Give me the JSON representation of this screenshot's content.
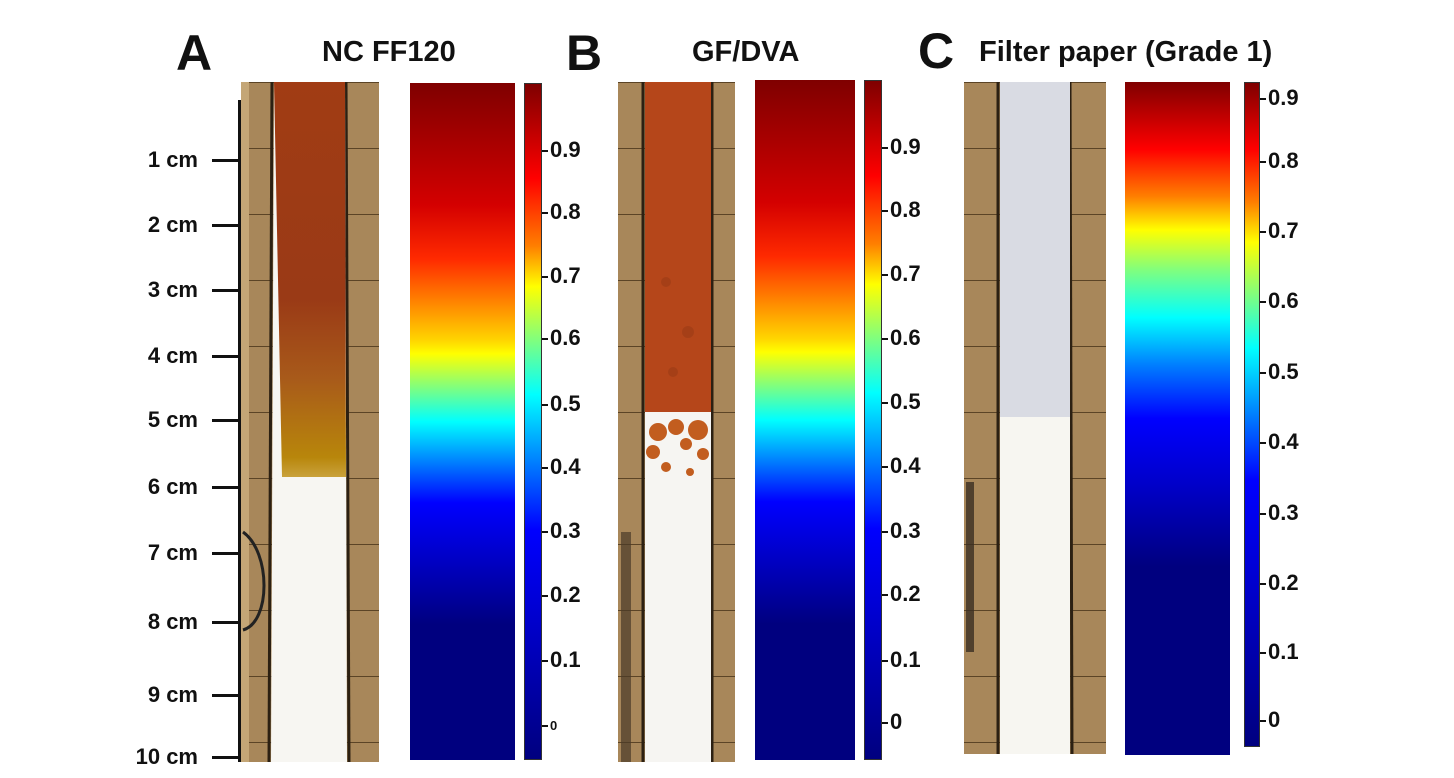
{
  "panels": [
    {
      "letter": "A",
      "title": "NC FF120"
    },
    {
      "letter": "B",
      "title": "GF/DVA"
    },
    {
      "letter": "C",
      "title": "Filter paper (Grade 1)"
    }
  ],
  "ruler_labels": [
    "1 cm",
    "2 cm",
    "3 cm",
    "4 cm",
    "5 cm",
    "6 cm",
    "7 cm",
    "8 cm",
    "9 cm",
    "10 cm"
  ],
  "colorbar_a_ticks": [
    "0.9",
    "0.8",
    "0.7",
    "0.6",
    "0.5",
    "0.4",
    "0.3",
    "0.2",
    "0.1",
    "0"
  ],
  "colorbar_b_ticks": [
    "0.9",
    "0.8",
    "0.7",
    "0.6",
    "0.5",
    "0.4",
    "0.3",
    "0.2",
    "0.1",
    "0"
  ],
  "colorbar_c_ticks": [
    "0.9",
    "0.8",
    "0.7",
    "0.6",
    "0.5",
    "0.4",
    "0.3",
    "0.2",
    "0.1",
    "0"
  ],
  "colors": {
    "wood": "#a8875a",
    "strip_white": "#f7f6f2",
    "nc_stain": "#a13c14",
    "nc_front": "#b8860b",
    "gf_stain": "#b5461a",
    "paper_tint": "#d9dbe3"
  },
  "colormap": "jet"
}
